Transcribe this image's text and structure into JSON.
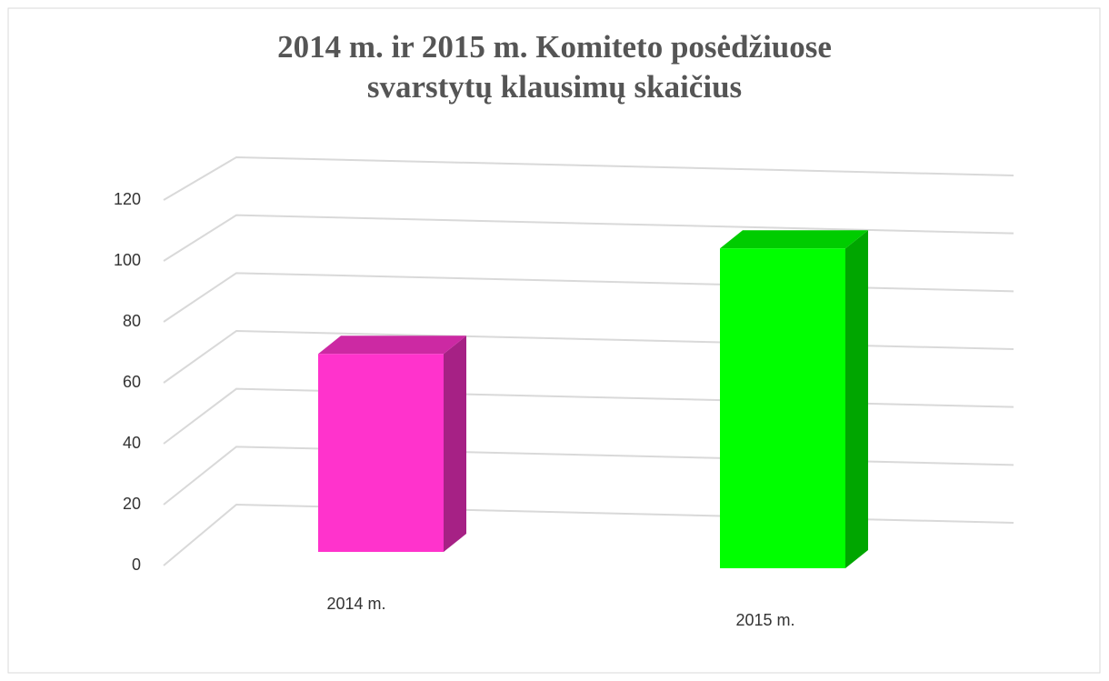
{
  "chart_data": {
    "type": "bar3d",
    "title": "2014 m. ir 2015 m. Komiteto posėdžiuose svarstytų klausimų skaičius",
    "categories": [
      "2014 m.",
      "2015 m."
    ],
    "values": [
      65,
      105
    ],
    "colors": [
      "#ff33cc",
      "#00ff00"
    ],
    "ylim": [
      0,
      120
    ],
    "yticks": [
      0,
      20,
      40,
      60,
      80,
      100,
      120
    ],
    "grid": true
  }
}
